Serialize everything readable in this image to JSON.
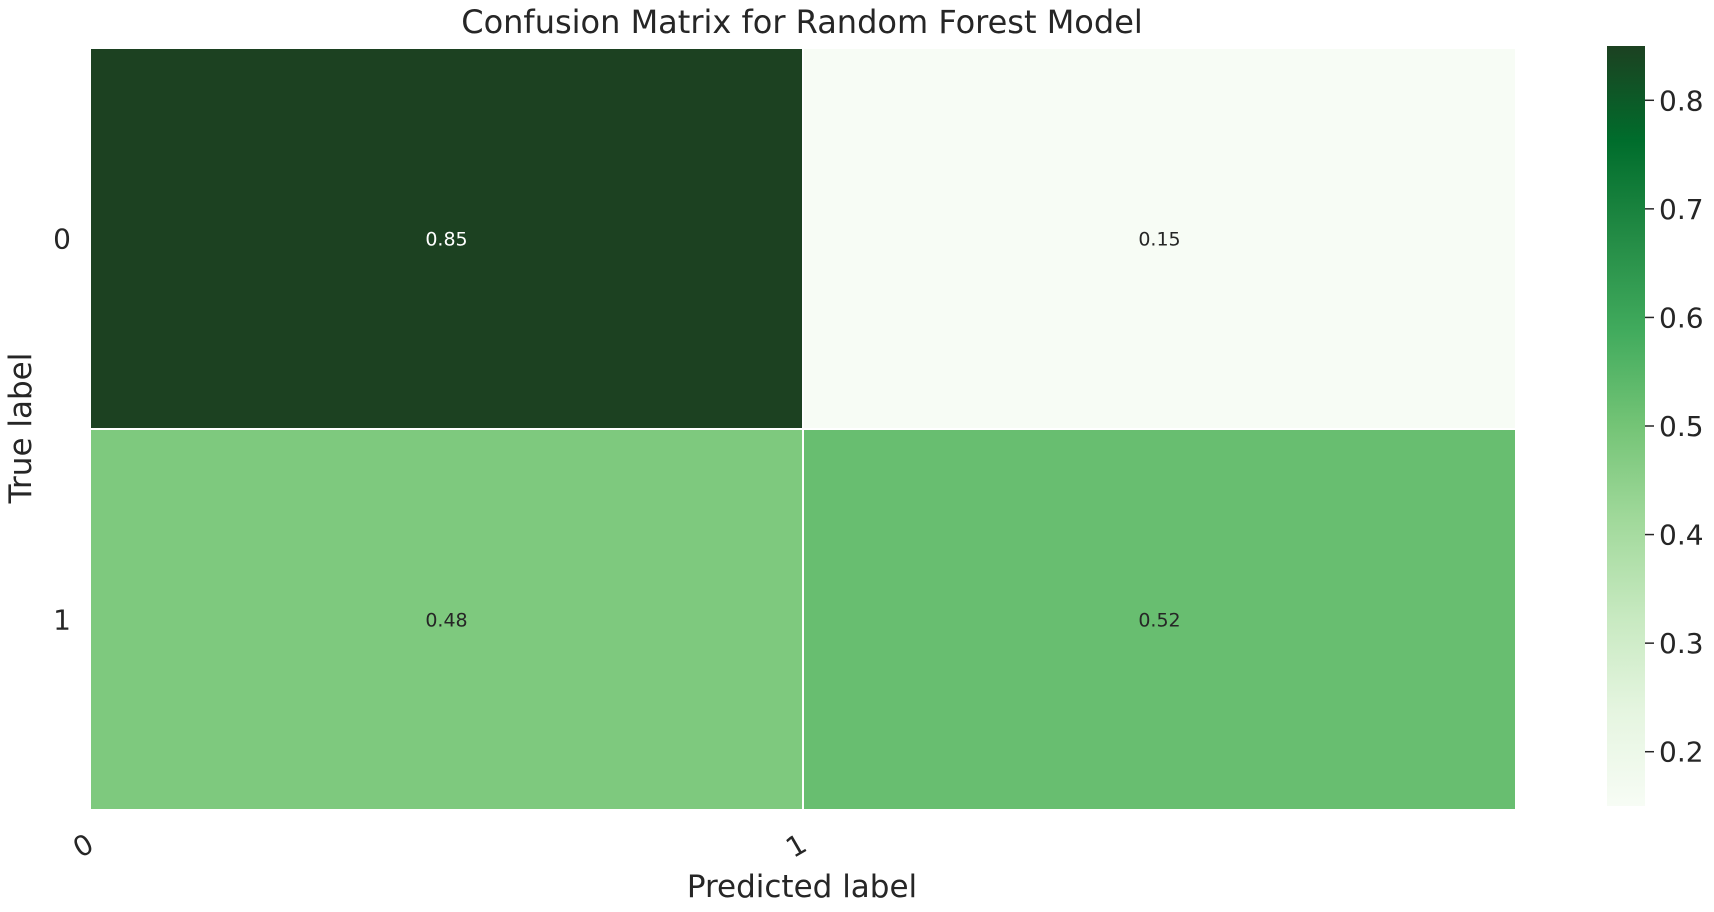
{
  "chart_data": {
    "type": "heatmap",
    "title": "Confusion Matrix for Random Forest Model",
    "xlabel": "Predicted label",
    "ylabel": "True label",
    "x_categories": [
      "0",
      "1"
    ],
    "y_categories": [
      "0",
      "1"
    ],
    "values": [
      [
        0.85,
        0.15
      ],
      [
        0.48,
        0.52
      ]
    ],
    "annotations": [
      [
        "0.85",
        "0.15"
      ],
      [
        "0.48",
        "0.52"
      ]
    ],
    "colorbar": {
      "range": [
        0.15,
        0.85
      ],
      "ticks": [
        0.2,
        0.3,
        0.4,
        0.5,
        0.6,
        0.7,
        0.8
      ],
      "tick_labels": [
        "0.2",
        "0.3",
        "0.4",
        "0.5",
        "0.6",
        "0.7",
        "0.8"
      ],
      "colormap": "Greens"
    },
    "colors": {
      "text_dark": "#262626",
      "text_light": "#ffffff",
      "cell_border": "#ffffff"
    }
  }
}
